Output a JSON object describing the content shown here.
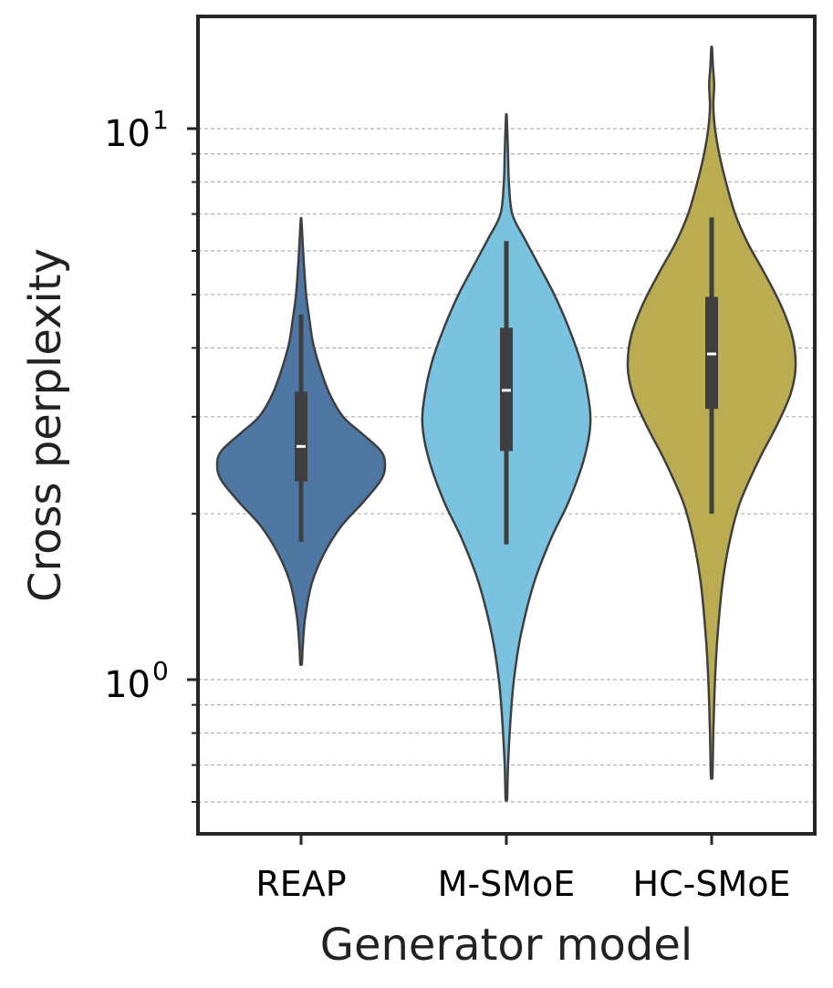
{
  "chart_data": {
    "type": "violin",
    "xlabel": "Generator model",
    "ylabel": "Cross perplexity",
    "yscale": "log",
    "ylim": [
      0.57,
      16
    ],
    "yticks": [
      {
        "value": 1,
        "base": "10",
        "exp": "0"
      },
      {
        "value": 10,
        "base": "10",
        "exp": "1"
      }
    ],
    "grid": "y-major-and-minor-dashed",
    "categories": [
      "REAP",
      "M-SMoE",
      "HC-SMoE"
    ],
    "series": [
      {
        "name": "REAP",
        "color": "#4e77a3",
        "min": 1.07,
        "max": 6.8,
        "whisker_low": 1.78,
        "q1": 2.29,
        "median": 2.65,
        "q3": 3.33,
        "whisker_high": 4.6,
        "density": [
          [
            1.07,
            0.01
          ],
          [
            1.15,
            0.02
          ],
          [
            1.3,
            0.05
          ],
          [
            1.5,
            0.13
          ],
          [
            1.7,
            0.28
          ],
          [
            1.9,
            0.48
          ],
          [
            2.1,
            0.74
          ],
          [
            2.3,
            0.95
          ],
          [
            2.45,
            1.0
          ],
          [
            2.6,
            0.95
          ],
          [
            2.8,
            0.72
          ],
          [
            3.0,
            0.5
          ],
          [
            3.3,
            0.34
          ],
          [
            3.7,
            0.22
          ],
          [
            4.1,
            0.14
          ],
          [
            4.5,
            0.1
          ],
          [
            5.0,
            0.06
          ],
          [
            5.8,
            0.03
          ],
          [
            6.8,
            0.005
          ]
        ]
      },
      {
        "name": "M-SMoE",
        "color": "#79c3e0",
        "min": 0.61,
        "max": 10.5,
        "whisker_low": 1.76,
        "q1": 2.6,
        "median": 3.35,
        "q3": 4.35,
        "whisker_high": 6.25,
        "density": [
          [
            0.61,
            0.01
          ],
          [
            0.7,
            0.02
          ],
          [
            0.85,
            0.05
          ],
          [
            1.0,
            0.09
          ],
          [
            1.2,
            0.17
          ],
          [
            1.5,
            0.33
          ],
          [
            1.8,
            0.53
          ],
          [
            2.1,
            0.74
          ],
          [
            2.5,
            0.92
          ],
          [
            2.9,
            1.0
          ],
          [
            3.3,
            0.97
          ],
          [
            3.8,
            0.88
          ],
          [
            4.4,
            0.73
          ],
          [
            5.0,
            0.57
          ],
          [
            5.6,
            0.4
          ],
          [
            6.3,
            0.22
          ],
          [
            7.0,
            0.07
          ],
          [
            8.0,
            0.03
          ],
          [
            9.0,
            0.02
          ],
          [
            10.5,
            0.005
          ]
        ]
      },
      {
        "name": "HC-SMoE",
        "color": "#bbac51",
        "min": 0.67,
        "max": 14,
        "whisker_low": 2.0,
        "q1": 3.1,
        "median": 3.9,
        "q3": 4.95,
        "whisker_high": 6.9,
        "density": [
          [
            0.67,
            0.01
          ],
          [
            0.8,
            0.02
          ],
          [
            1.0,
            0.04
          ],
          [
            1.2,
            0.07
          ],
          [
            1.5,
            0.13
          ],
          [
            1.8,
            0.22
          ],
          [
            2.1,
            0.34
          ],
          [
            2.5,
            0.56
          ],
          [
            2.9,
            0.78
          ],
          [
            3.3,
            0.94
          ],
          [
            3.7,
            1.0
          ],
          [
            4.2,
            0.96
          ],
          [
            4.8,
            0.82
          ],
          [
            5.5,
            0.62
          ],
          [
            6.2,
            0.43
          ],
          [
            7.0,
            0.28
          ],
          [
            8.0,
            0.17
          ],
          [
            9.0,
            0.09
          ],
          [
            10.0,
            0.04
          ],
          [
            11.0,
            0.02
          ],
          [
            12.0,
            0.03
          ],
          [
            13.0,
            0.015
          ],
          [
            14.0,
            0.005
          ]
        ]
      }
    ]
  }
}
